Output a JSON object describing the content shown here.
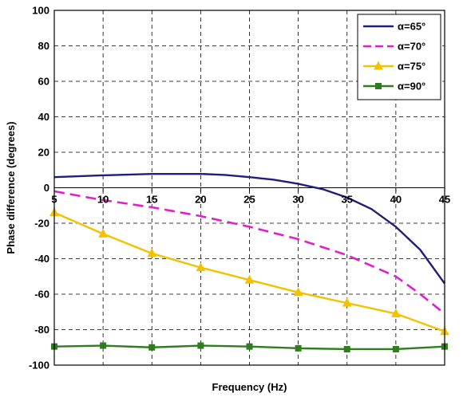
{
  "chart_data": {
    "type": "line",
    "title": "",
    "xlabel": "Frequency (Hz)",
    "ylabel": "Phase difference (degrees)",
    "xlim": [
      5,
      45
    ],
    "ylim": [
      -100,
      100
    ],
    "x_ticks": [
      5,
      10,
      15,
      20,
      25,
      30,
      35,
      40,
      45
    ],
    "y_ticks": [
      100,
      80,
      60,
      40,
      20,
      0,
      -20,
      -40,
      -60,
      -80,
      -100
    ],
    "grid": true,
    "legend_position": "top-right",
    "series": [
      {
        "name": "α=65°",
        "color": "#1f1f7a",
        "style": "solid",
        "marker": "none",
        "x": [
          5,
          10,
          15,
          20,
          22.5,
          25,
          27.5,
          30,
          32.5,
          35,
          37.5,
          40,
          42.5,
          45
        ],
        "y": [
          6,
          7,
          7.8,
          7.8,
          7.2,
          6,
          4.5,
          2.2,
          -0.8,
          -5.5,
          -12,
          -22,
          -35,
          -54
        ]
      },
      {
        "name": "α=70°",
        "color": "#e020c8",
        "style": "dashed",
        "marker": "none",
        "x": [
          5,
          10,
          15,
          20,
          25,
          30,
          35,
          40,
          42.5,
          45
        ],
        "y": [
          -2,
          -7,
          -11,
          -16,
          -22,
          -29,
          -38,
          -50,
          -60,
          -71
        ]
      },
      {
        "name": "α=75°",
        "color": "#f2c200",
        "style": "solid",
        "marker": "triangle",
        "x": [
          5,
          10,
          15,
          20,
          25,
          30,
          35,
          40,
          45
        ],
        "y": [
          -14,
          -26,
          -37,
          -45,
          -52,
          -59,
          -65,
          -71,
          -81
        ]
      },
      {
        "name": "α=90°",
        "color": "#2e7d1e",
        "style": "solid",
        "marker": "square",
        "x": [
          5,
          10,
          15,
          20,
          25,
          30,
          35,
          40,
          45
        ],
        "y": [
          -89.5,
          -89,
          -90,
          -89,
          -89.5,
          -90.5,
          -91,
          -91,
          -89.5
        ]
      }
    ]
  }
}
